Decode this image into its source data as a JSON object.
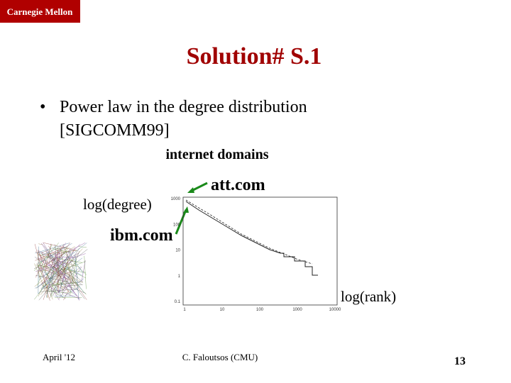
{
  "header": {
    "logo": "Carnegie Mellon"
  },
  "title": "Solution# S.1",
  "bullets": [
    {
      "lines": [
        "Power law in the degree distribution",
        "[SIGCOMM99]"
      ]
    }
  ],
  "figure": {
    "caption": "internet domains",
    "ylabel": "log(degree)",
    "xlabel": "log(rank)",
    "annotations": [
      "att.com",
      "ibm.com"
    ],
    "yticks": [
      "1000",
      "100",
      "10",
      "1",
      "0.1"
    ],
    "xticks": [
      "1",
      "10",
      "100",
      "1000",
      "10000"
    ]
  },
  "footer": {
    "date": "April '12",
    "author": "C. Faloutsos (CMU)",
    "page": "13"
  }
}
